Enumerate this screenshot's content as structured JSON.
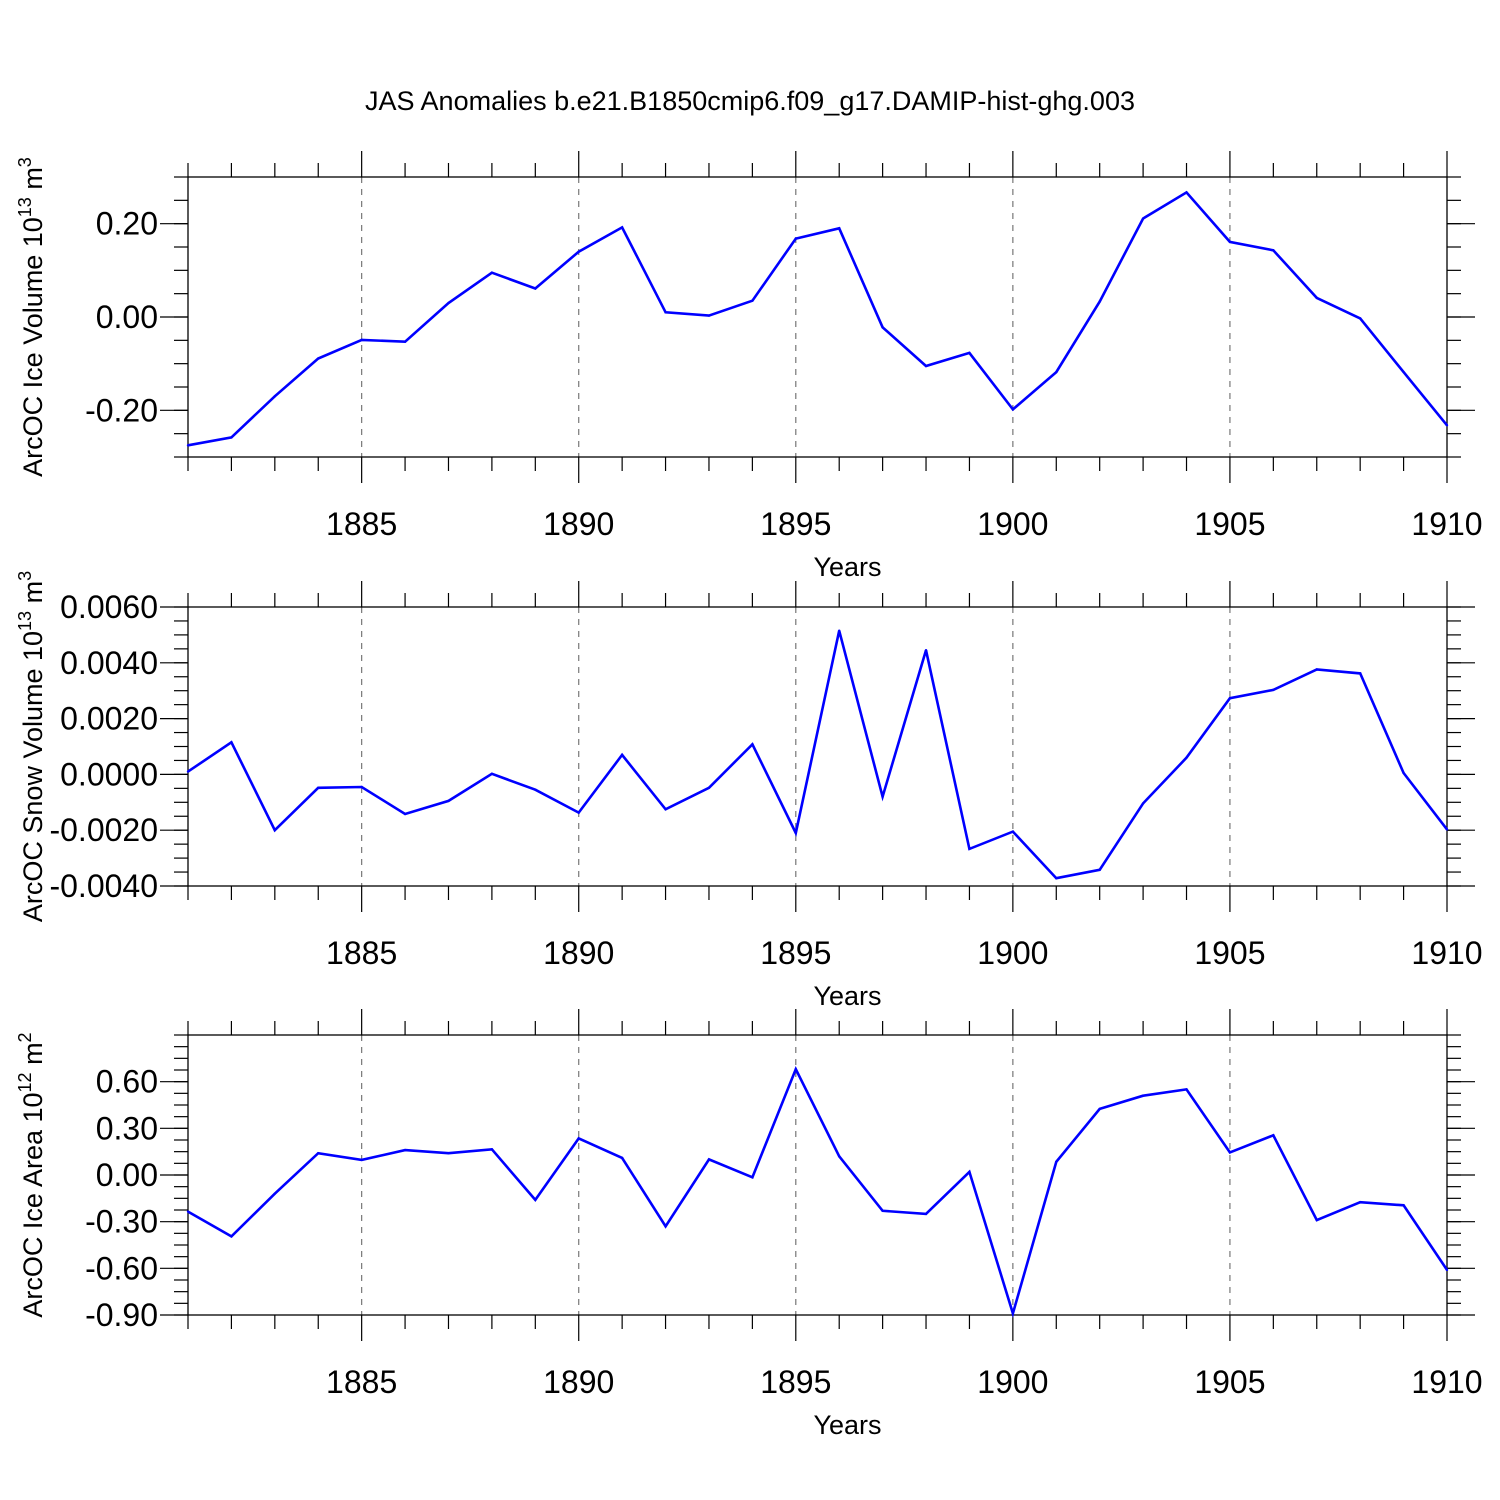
{
  "figure": {
    "title": "JAS Anomalies b.e21.B1850cmip6.f09_g17.DAMIP-hist-ghg.003",
    "line_color": "#0000ff"
  },
  "chart_data": [
    {
      "type": "line",
      "id": "ice_volume",
      "ylabel_main": "ArcOC Ice Volume 10",
      "ylabel_exp": "13",
      "ylabel_unit": " m",
      "ylabel_unit_exp": "3",
      "xlabel": "Years",
      "xlim": [
        1881,
        1910
      ],
      "ylim": [
        -0.3,
        0.3
      ],
      "grid": "vertical dashed at major x ticks",
      "x_ticks": [
        1885,
        1890,
        1895,
        1900,
        1905,
        1910
      ],
      "x_tick_labels": [
        "1885",
        "1890",
        "1895",
        "1900",
        "1905",
        "1910"
      ],
      "y_ticks": [
        -0.2,
        0.0,
        0.2
      ],
      "y_tick_labels": [
        "-0.20",
        "0.00",
        "0.20"
      ],
      "y_minor_step": 0.05,
      "x": [
        1881,
        1882,
        1883,
        1884,
        1885,
        1886,
        1887,
        1888,
        1889,
        1890,
        1891,
        1892,
        1893,
        1894,
        1895,
        1896,
        1897,
        1898,
        1899,
        1900,
        1901,
        1902,
        1903,
        1904,
        1905,
        1906,
        1907,
        1908,
        1909,
        1910
      ],
      "values": [
        -0.275,
        -0.258,
        -0.17,
        -0.089,
        -0.049,
        -0.053,
        0.03,
        0.095,
        0.061,
        0.14,
        0.192,
        0.01,
        0.003,
        0.035,
        0.168,
        0.19,
        -0.022,
        -0.105,
        -0.077,
        -0.198,
        -0.118,
        0.033,
        0.211,
        0.267,
        0.161,
        0.143,
        0.041,
        -0.003,
        -0.118,
        -0.232
      ]
    },
    {
      "type": "line",
      "id": "snow_volume",
      "ylabel_main": "ArcOC Snow Volume 10",
      "ylabel_exp": "13",
      "ylabel_unit": " m",
      "ylabel_unit_exp": "3",
      "xlabel": "Years",
      "xlim": [
        1881,
        1910
      ],
      "ylim": [
        -0.004,
        0.006
      ],
      "grid": "vertical dashed at major x ticks",
      "x_ticks": [
        1885,
        1890,
        1895,
        1900,
        1905,
        1910
      ],
      "x_tick_labels": [
        "1885",
        "1890",
        "1895",
        "1900",
        "1905",
        "1910"
      ],
      "y_ticks": [
        -0.004,
        -0.002,
        0.0,
        0.002,
        0.004,
        0.006
      ],
      "y_tick_labels": [
        "-0.0040",
        "-0.0020",
        "0.0000",
        "0.0020",
        "0.0040",
        "0.0060"
      ],
      "y_minor_step": 0.0005,
      "x": [
        1881,
        1882,
        1883,
        1884,
        1885,
        1886,
        1887,
        1888,
        1889,
        1890,
        1891,
        1892,
        1893,
        1894,
        1895,
        1896,
        1897,
        1898,
        1899,
        1900,
        1901,
        1902,
        1903,
        1904,
        1905,
        1906,
        1907,
        1908,
        1909,
        1910
      ],
      "values": [
        0.0001,
        0.00115,
        -0.002,
        -0.00048,
        -0.00045,
        -0.00142,
        -0.00095,
        2e-05,
        -0.00055,
        -0.00137,
        0.0007,
        -0.00125,
        -0.00048,
        0.00108,
        -0.0021,
        0.00515,
        -0.0008,
        0.00445,
        -0.00267,
        -0.00205,
        -0.00372,
        -0.00342,
        -0.00104,
        0.0006,
        0.00273,
        0.00303,
        0.00376,
        0.00362,
        5e-05,
        -0.00197
      ]
    },
    {
      "type": "line",
      "id": "ice_area",
      "ylabel_main": "ArcOC Ice Area 10",
      "ylabel_exp": "12",
      "ylabel_unit": " m",
      "ylabel_unit_exp": "2",
      "xlabel": "Years",
      "xlim": [
        1881,
        1910
      ],
      "ylim": [
        -0.9,
        0.9
      ],
      "grid": "vertical dashed at major x ticks",
      "x_ticks": [
        1885,
        1890,
        1895,
        1900,
        1905,
        1910
      ],
      "x_tick_labels": [
        "1885",
        "1890",
        "1895",
        "1900",
        "1905",
        "1910"
      ],
      "y_ticks": [
        -0.9,
        -0.6,
        -0.3,
        0.0,
        0.3,
        0.6
      ],
      "y_tick_labels": [
        "-0.90",
        "-0.60",
        "-0.30",
        "0.00",
        "0.30",
        "0.60"
      ],
      "y_minor_step": 0.075,
      "x": [
        1881,
        1882,
        1883,
        1884,
        1885,
        1886,
        1887,
        1888,
        1889,
        1890,
        1891,
        1892,
        1893,
        1894,
        1895,
        1896,
        1897,
        1898,
        1899,
        1900,
        1901,
        1902,
        1903,
        1904,
        1905,
        1906,
        1907,
        1908,
        1909,
        1910
      ],
      "values": [
        -0.235,
        -0.395,
        -0.12,
        0.14,
        0.097,
        0.16,
        0.14,
        0.165,
        -0.16,
        0.235,
        0.11,
        -0.33,
        0.1,
        -0.015,
        0.68,
        0.12,
        -0.23,
        -0.25,
        0.02,
        -0.89,
        0.085,
        0.425,
        0.51,
        0.55,
        0.145,
        0.255,
        -0.29,
        -0.175,
        -0.195,
        -0.61
      ]
    }
  ]
}
